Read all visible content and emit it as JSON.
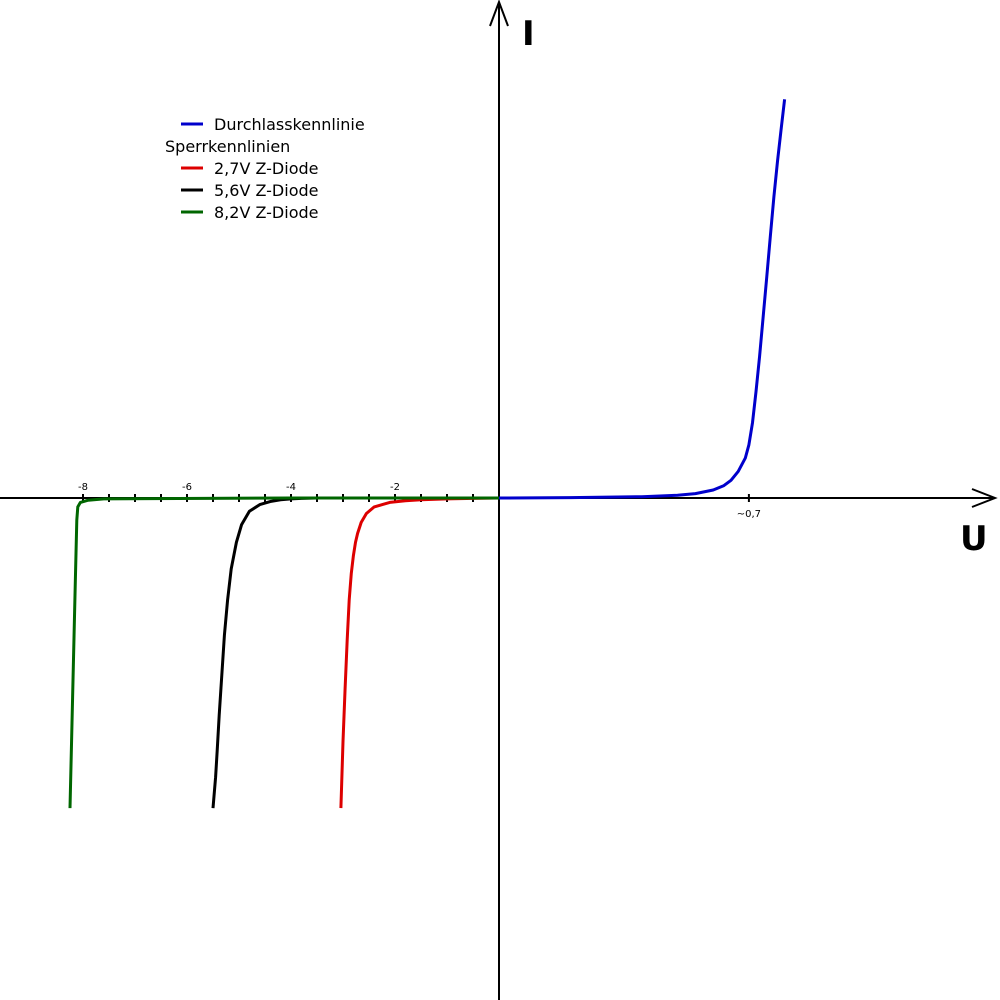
{
  "chart_data": {
    "type": "line",
    "title": "",
    "xlabel": "U",
    "ylabel": "I",
    "grid": false,
    "legend_position": "top-left",
    "legend": {
      "items": [
        {
          "label": "Durchlasskennlinie",
          "color": "#0000cc"
        },
        {
          "label": "Sperrkennlinien",
          "color": null
        },
        {
          "label": "2,7V Z-Diode",
          "color": "#dd0000"
        },
        {
          "label": "5,6V Z-Diode",
          "color": "#000000"
        },
        {
          "label": "8,2V Z-Diode",
          "color": "#006600"
        }
      ]
    },
    "x_ticks": [
      {
        "value": -8,
        "label": "-8"
      },
      {
        "value": -6,
        "label": "-6"
      },
      {
        "value": -4,
        "label": "-4"
      },
      {
        "value": -2,
        "label": "-2"
      },
      {
        "value": 0.7,
        "label": "~0,7"
      }
    ],
    "series": [
      {
        "name": "Durchlasskennlinie",
        "color": "#0000cc",
        "x": [
          0,
          0.2,
          0.4,
          0.5,
          0.55,
          0.6,
          0.63,
          0.65,
          0.67,
          0.69,
          0.7,
          0.71,
          0.72,
          0.73,
          0.74,
          0.75,
          0.76,
          0.77,
          0.78,
          0.79,
          0.8
        ],
        "y": [
          0,
          0.01,
          0.03,
          0.06,
          0.1,
          0.18,
          0.28,
          0.4,
          0.6,
          0.9,
          1.2,
          1.7,
          2.4,
          3.2,
          4.1,
          5.0,
          5.9,
          6.8,
          7.6,
          8.3,
          9.0
        ]
      },
      {
        "name": "2,7V Z-Diode",
        "color": "#dd0000",
        "x": [
          0,
          -0.5,
          -1.0,
          -1.5,
          -1.8,
          -2.1,
          -2.4,
          -2.55,
          -2.65,
          -2.72,
          -2.76,
          -2.8,
          -2.84,
          -2.88,
          -2.92,
          -2.96,
          -3.0,
          -3.04
        ],
        "y": [
          0,
          -0.01,
          -0.02,
          -0.04,
          -0.06,
          -0.1,
          -0.2,
          -0.35,
          -0.55,
          -0.8,
          -1.0,
          -1.3,
          -1.7,
          -2.3,
          -3.2,
          -4.3,
          -5.5,
          -7.0
        ]
      },
      {
        "name": "5,6V Z-Diode",
        "color": "#000000",
        "x": [
          -3.5,
          -3.8,
          -4.0,
          -4.2,
          -4.4,
          -4.6,
          -4.8,
          -4.95,
          -5.05,
          -5.15,
          -5.22,
          -5.28,
          -5.33,
          -5.38,
          -5.42,
          -5.45,
          -5.5
        ],
        "y": [
          0,
          -0.01,
          -0.02,
          -0.04,
          -0.08,
          -0.15,
          -0.3,
          -0.6,
          -1.0,
          -1.6,
          -2.3,
          -3.1,
          -4.0,
          -4.9,
          -5.7,
          -6.3,
          -7.0
        ]
      },
      {
        "name": "8,2V Z-Diode",
        "color": "#006600",
        "x": [
          0,
          -4.0,
          -7.6,
          -7.9,
          -8.05,
          -8.1,
          -8.12,
          -8.15,
          -8.2,
          -8.25
        ],
        "y": [
          0,
          0,
          -0.02,
          -0.05,
          -0.1,
          -0.2,
          -0.5,
          -2.0,
          -4.5,
          -7.0
        ]
      }
    ]
  }
}
